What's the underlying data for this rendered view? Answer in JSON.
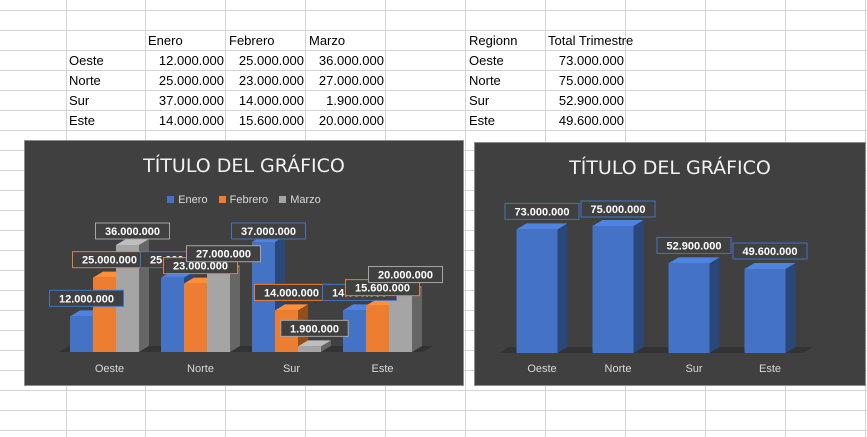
{
  "table1": {
    "headers": [
      "Enero",
      "Febrero",
      "Marzo"
    ],
    "rows": [
      {
        "region": "Oeste",
        "values": [
          "12.000.000",
          "25.000.000",
          "36.000.000"
        ]
      },
      {
        "region": "Norte",
        "values": [
          "25.000.000",
          "23.000.000",
          "27.000.000"
        ]
      },
      {
        "region": "Sur",
        "values": [
          "37.000.000",
          "14.000.000",
          "1.900.000"
        ]
      },
      {
        "region": "Este",
        "values": [
          "14.000.000",
          "15.600.000",
          "20.000.000"
        ]
      }
    ]
  },
  "table2": {
    "headers": [
      "Regionn",
      "Total Trimestre"
    ],
    "rows": [
      {
        "region": "Oeste",
        "total": "73.000.000"
      },
      {
        "region": "Norte",
        "total": "75.000.000"
      },
      {
        "region": "Sur",
        "total": "52.900.000"
      },
      {
        "region": "Este",
        "total": "49.600.000"
      }
    ]
  },
  "colors": {
    "enero": "#4472c4",
    "febrero": "#ed7d31",
    "marzo": "#a5a5a5",
    "chart_bg": "#404040",
    "gridline": "#d4d4d4"
  },
  "chart_data": [
    {
      "type": "bar",
      "title": "TÍTULO DEL GRÁFICO",
      "categories": [
        "Oeste",
        "Norte",
        "Sur",
        "Este"
      ],
      "series": [
        {
          "name": "Enero",
          "values": [
            12000000,
            25000000,
            37000000,
            14000000
          ],
          "labels": [
            "12.000.000",
            "25.000.000",
            "37.000.000",
            "14.000.000"
          ]
        },
        {
          "name": "Febrero",
          "values": [
            25000000,
            23000000,
            14000000,
            15600000
          ],
          "labels": [
            "25.000.000",
            "23.000.000",
            "14.000.000",
            "15.600.000"
          ]
        },
        {
          "name": "Marzo",
          "values": [
            36000000,
            27000000,
            1900000,
            20000000
          ],
          "labels": [
            "36.000.000",
            "27.000.000",
            "1.900.000",
            "20.000.000"
          ]
        }
      ],
      "legend": "top",
      "grid": false,
      "style": "3d-column"
    },
    {
      "type": "bar",
      "title": "TÍTULO DEL GRÁFICO",
      "categories": [
        "Oeste",
        "Norte",
        "Sur",
        "Este"
      ],
      "series": [
        {
          "values": [
            73000000,
            75000000,
            52900000,
            49600000
          ],
          "labels": [
            "73.000.000",
            "75.000.000",
            "52.900.000",
            "49.600.000"
          ]
        }
      ],
      "grid": false,
      "style": "3d-column"
    }
  ]
}
